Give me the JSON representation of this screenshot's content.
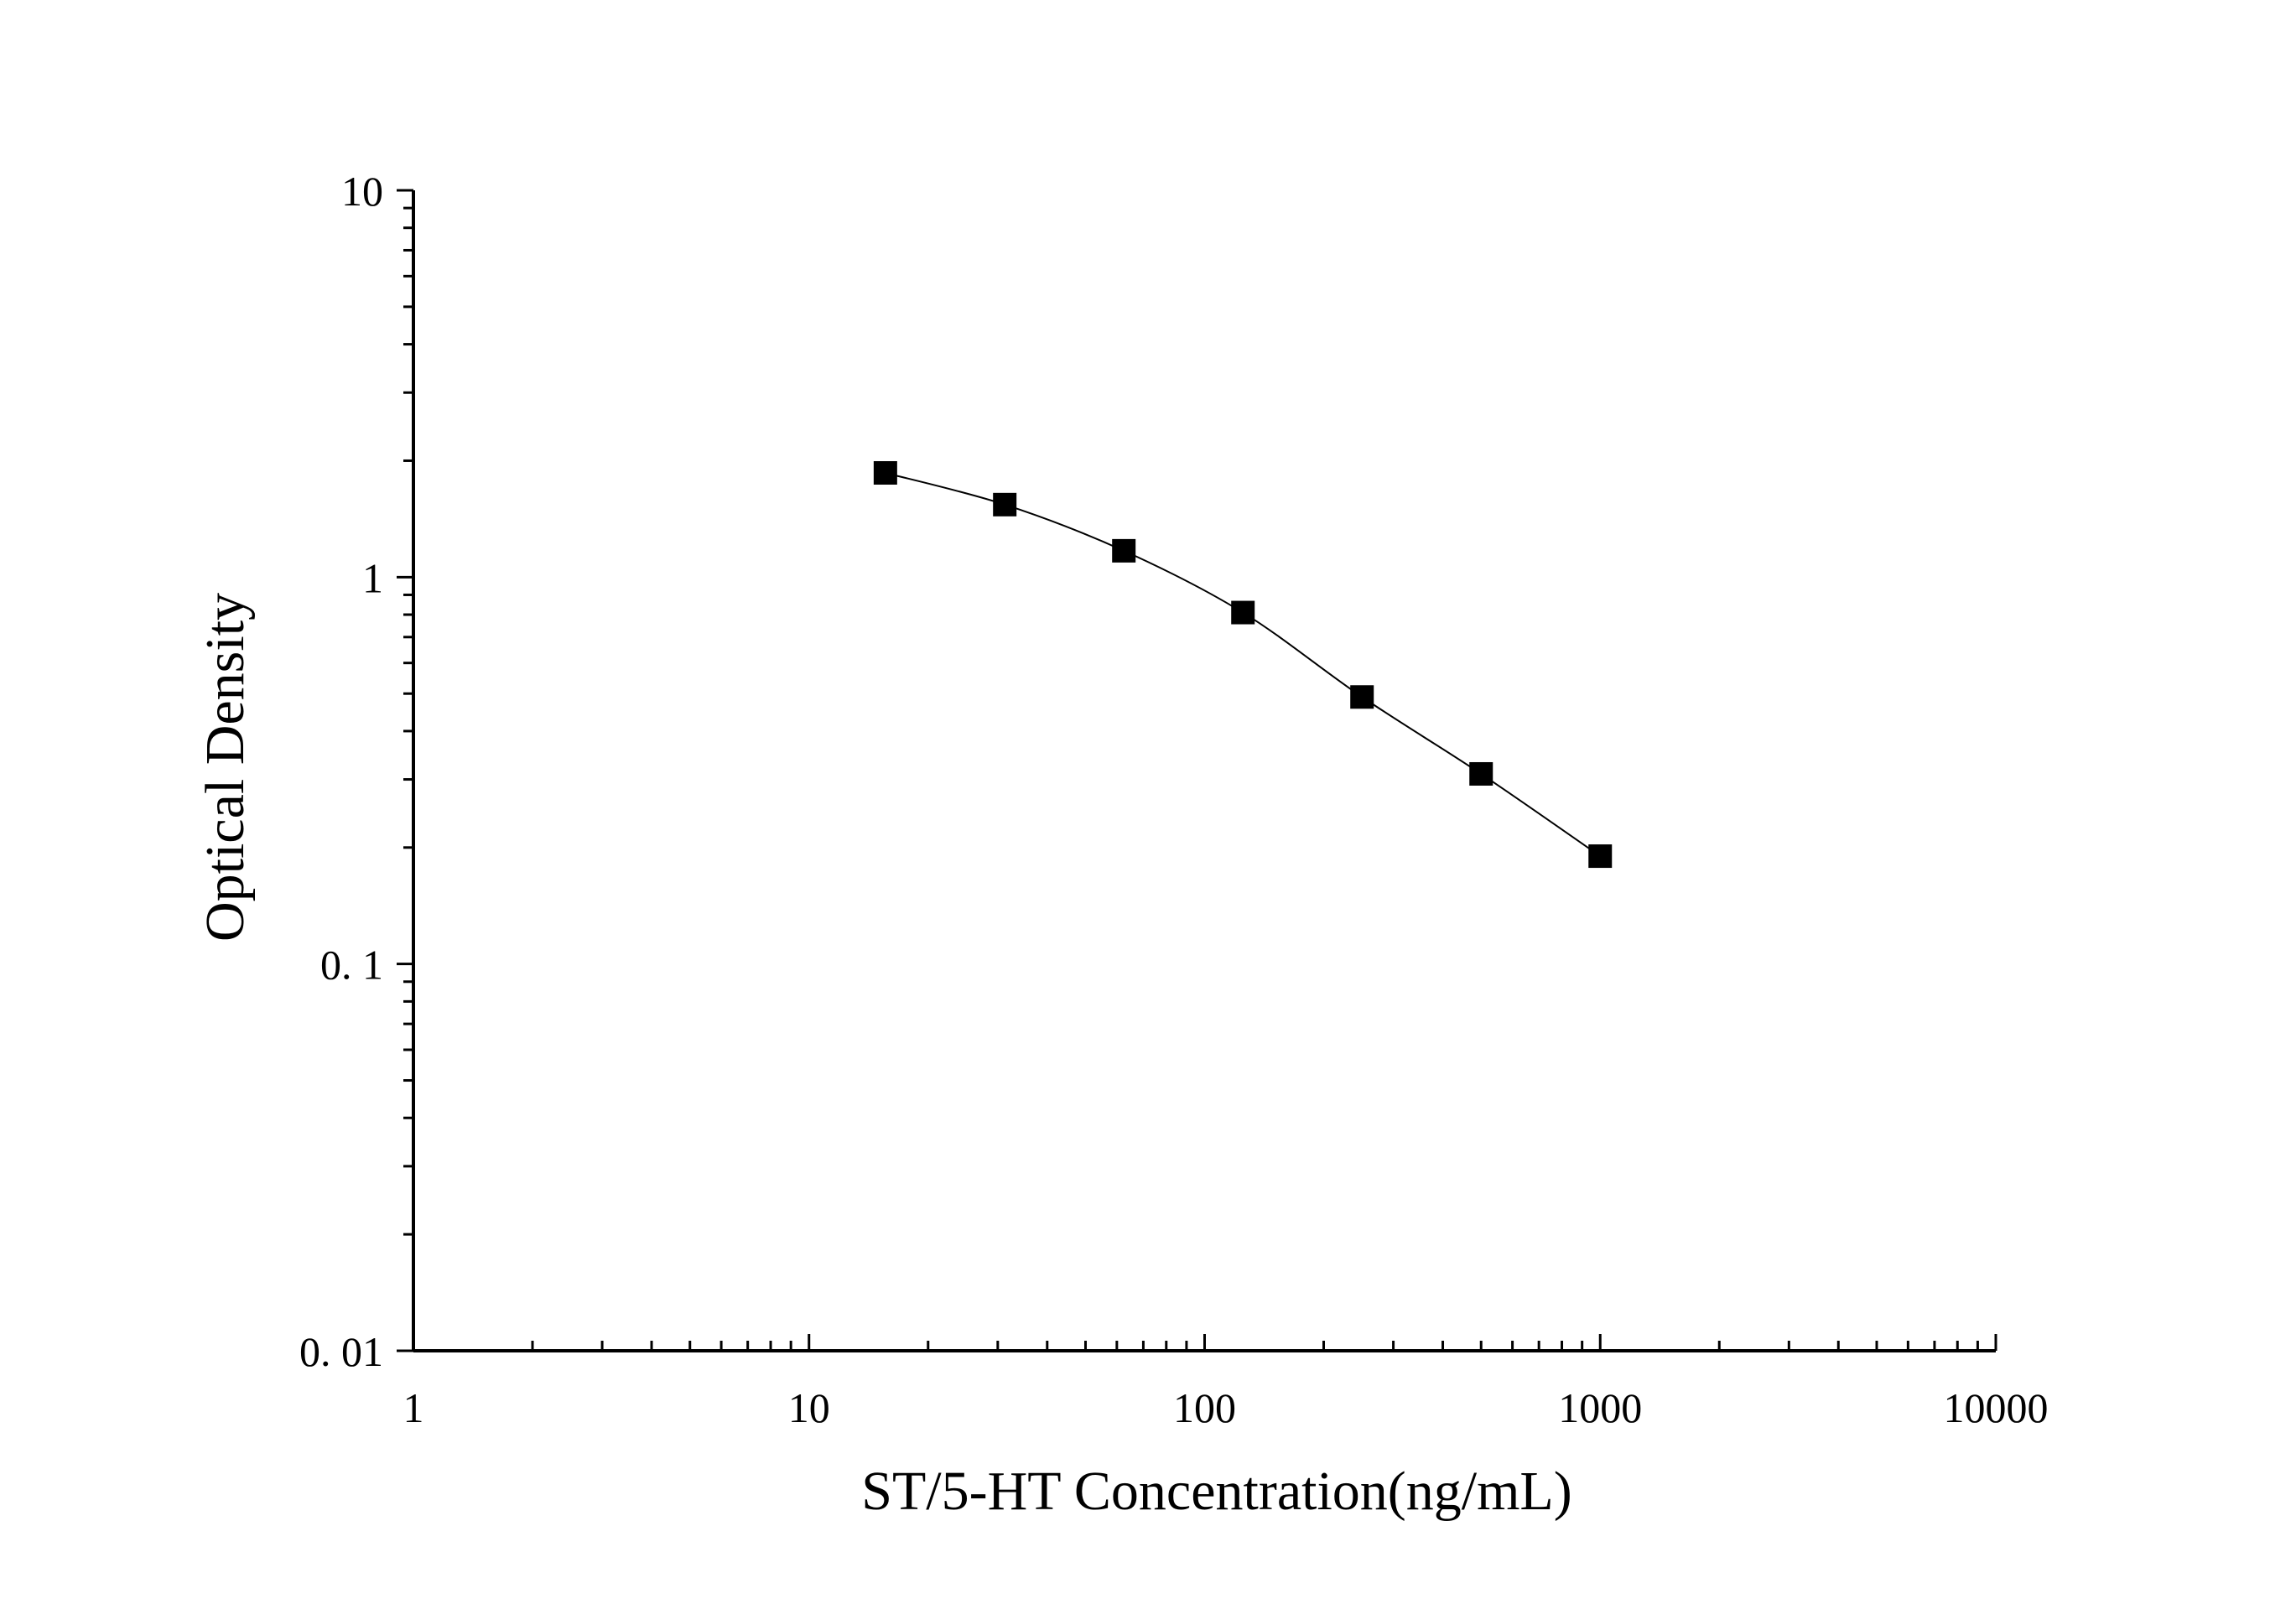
{
  "chart_data": {
    "type": "scatter",
    "title": "",
    "xlabel": "ST/5-HT Concentration(ng/mL)",
    "ylabel": "Optical Density",
    "xscale": "log",
    "yscale": "log",
    "xlim": [
      1,
      10000
    ],
    "ylim": [
      0.01,
      10
    ],
    "xticks": [
      {
        "value": 1,
        "label": "1"
      },
      {
        "value": 10,
        "label": "10"
      },
      {
        "value": 100,
        "label": "100"
      },
      {
        "value": 1000,
        "label": "1000"
      },
      {
        "value": 10000,
        "label": "10000"
      }
    ],
    "yticks": [
      {
        "value": 0.01,
        "label": "0. 01"
      },
      {
        "value": 0.1,
        "label": "0. 1"
      },
      {
        "value": 1,
        "label": "1"
      },
      {
        "value": 10,
        "label": "10"
      }
    ],
    "grid": false,
    "legend": "none",
    "series": [
      {
        "marker": "square",
        "color": "#000000",
        "x": [
          15.6,
          31.25,
          62.5,
          125,
          250,
          500,
          1000
        ],
        "y": [
          1.86,
          1.54,
          1.17,
          0.81,
          0.49,
          0.31,
          0.19
        ],
        "fit": "smooth-curve"
      }
    ]
  }
}
